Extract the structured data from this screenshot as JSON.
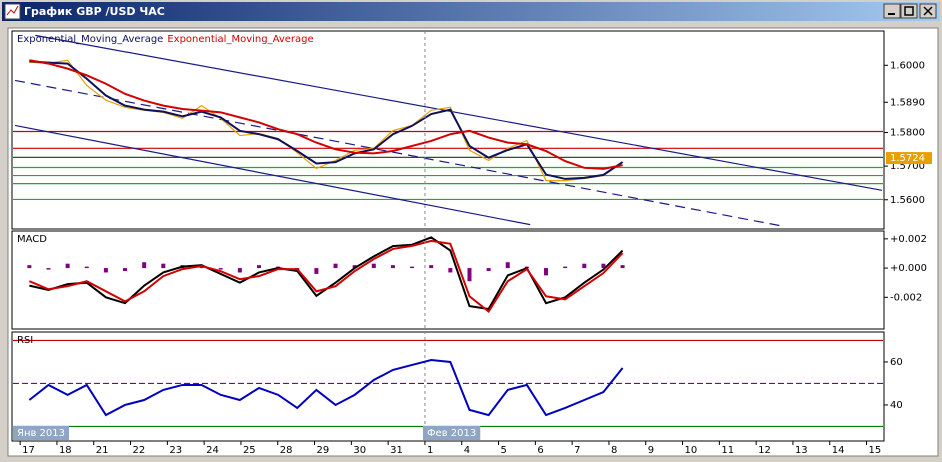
{
  "window": {
    "title": "График GBP /USD ЧАС"
  },
  "chart_data": [
    {
      "type": "line",
      "x": [
        0.25,
        0.77,
        1.29,
        1.81,
        2.33,
        2.85,
        3.37,
        3.89,
        4.41,
        4.93,
        5.45,
        5.97,
        6.49,
        7.01,
        7.53,
        8.05,
        8.57,
        9.09,
        9.61,
        10.13,
        10.65,
        11.17,
        11.69,
        12.21,
        12.73,
        13.25,
        13.77,
        14.29,
        14.81,
        15.33,
        15.85,
        16.37
      ],
      "xlim": [
        -0.14,
        23.42
      ],
      "ylim": [
        1.5516,
        1.6096
      ],
      "yticks": [
        {
          "value": 1.6,
          "label": "1.6000"
        },
        {
          "value": 1.589,
          "label": "1.5890"
        },
        {
          "value": 1.58,
          "label": "1.5800"
        },
        {
          "value": 1.57,
          "label": "1.5700"
        },
        {
          "value": 1.56,
          "label": "1.5600"
        }
      ],
      "series": [
        {
          "color": "#e8a000",
          "values": [
            1.6009,
            1.6006,
            1.6015,
            1.594,
            1.5896,
            1.5875,
            1.5866,
            1.586,
            1.5842,
            1.588,
            1.5842,
            1.5791,
            1.5797,
            1.5782,
            1.574,
            1.5693,
            1.5717,
            1.5747,
            1.5753,
            1.5806,
            1.5821,
            1.5866,
            1.5875,
            1.5747,
            1.5717,
            1.5753,
            1.5776,
            1.5657,
            1.5657,
            1.5663,
            1.5672,
            1.5711
          ]
        },
        {
          "name": "Exponential_Moving_Average",
          "color": "#10105a",
          "values": [
            1.6012,
            1.6008,
            1.6005,
            1.596,
            1.591,
            1.588,
            1.5868,
            1.5862,
            1.5848,
            1.5862,
            1.5845,
            1.5805,
            1.5795,
            1.578,
            1.5745,
            1.5708,
            1.5712,
            1.5738,
            1.575,
            1.5795,
            1.582,
            1.5855,
            1.5868,
            1.576,
            1.5725,
            1.5748,
            1.5765,
            1.5675,
            1.5662,
            1.5665,
            1.5674,
            1.5712
          ]
        },
        {
          "name": "Exponential_Moving_Average",
          "color": "#d40000",
          "values": [
            1.6015,
            1.6005,
            1.599,
            1.597,
            1.5945,
            1.5915,
            1.5895,
            1.588,
            1.587,
            1.5865,
            1.586,
            1.5845,
            1.583,
            1.581,
            1.5795,
            1.577,
            1.575,
            1.574,
            1.5738,
            1.5745,
            1.576,
            1.5775,
            1.5795,
            1.5805,
            1.5785,
            1.577,
            1.5765,
            1.5745,
            1.5715,
            1.5695,
            1.5692,
            1.5703
          ]
        }
      ],
      "hlines": [
        {
          "value": 1.5803,
          "color": "#cc0000"
        },
        {
          "value": 1.5753,
          "color": "#cc0000"
        },
        {
          "value": 1.5726,
          "color": "#2f4f2f"
        },
        {
          "value": 1.5696,
          "color": "#22aa22"
        },
        {
          "value": 1.5672,
          "color": "#22aa22"
        },
        {
          "value": 1.5648,
          "color": "#22aa22"
        },
        {
          "value": 1.5601,
          "color": "#22aa22"
        }
      ],
      "trendlines": [
        {
          "x": [
            0.41,
            23.42
          ],
          "y": [
            1.6089,
            1.5628
          ],
          "color": "#1a1a8c",
          "dash": false
        },
        {
          "x": [
            -0.14,
            20.65
          ],
          "y": [
            1.5955,
            1.5523
          ],
          "color": "#1a1a8c",
          "dash": true
        },
        {
          "x": [
            -0.14,
            13.86
          ],
          "y": [
            1.5821,
            1.5526
          ],
          "color": "#1a1a8c",
          "dash": false
        }
      ],
      "last_price": 1.5724
    },
    {
      "type": "line",
      "title": "MACD",
      "x": [
        0.25,
        0.77,
        1.29,
        1.81,
        2.33,
        2.85,
        3.37,
        3.89,
        4.41,
        4.93,
        5.45,
        5.97,
        6.49,
        7.01,
        7.53,
        8.05,
        8.57,
        9.09,
        9.61,
        10.13,
        10.65,
        11.17,
        11.69,
        12.21,
        12.73,
        13.25,
        13.77,
        14.29,
        14.81,
        15.33,
        15.85,
        16.37
      ],
      "xlim": [
        -0.14,
        23.42
      ],
      "ylim": [
        -0.0041,
        0.0024
      ],
      "yticks": [
        {
          "value": 0.002,
          "label": "+0.002"
        },
        {
          "value": 0,
          "label": "+0.000"
        },
        {
          "value": -0.002,
          "label": "-0.002"
        }
      ],
      "series": [
        {
          "type": "bar",
          "color": "#800080",
          "values": [
            0.0002,
            -0.0001,
            0.0003,
            0.0001,
            -0.0003,
            -0.0002,
            0.0004,
            0.0003,
            0.0002,
            0.0001,
            -0.0001,
            -0.0003,
            0.0002,
            0.0001,
            -0.0002,
            -0.0004,
            0.0003,
            0.0002,
            0.0003,
            0.0002,
            0.0001,
            0.0002,
            -0.0003,
            -0.0009,
            -0.0002,
            0.0004,
            0.0001,
            -0.0005,
            0.0001,
            0.0003,
            0.0003,
            0.0002
          ]
        },
        {
          "color": "#000000",
          "values": [
            -0.0012,
            -0.0015,
            -0.0011,
            -0.001,
            -0.002,
            -0.0024,
            -0.0012,
            -0.0003,
            0.0001,
            0.0002,
            -0.0004,
            -0.001,
            -0.0003,
            0,
            -0.0002,
            -0.0019,
            -0.001,
            0,
            0.0008,
            0.0015,
            0.0016,
            0.0021,
            0.0012,
            -0.0026,
            -0.0028,
            -0.0005,
            0,
            -0.0024,
            -0.002,
            -0.001,
            -0.0001,
            0.0012
          ]
        },
        {
          "color": "#d40000",
          "values": [
            -0.0009,
            -0.00145,
            -0.00124,
            -0.0009,
            -0.00159,
            -0.00228,
            -0.00159,
            -0.00055,
            -7e-05,
            0.00014,
            -0.00021,
            -0.00076,
            -0.00055,
            -7e-05,
            -7e-05,
            -0.00159,
            -0.00124,
            -0.00021,
            0.00062,
            0.00131,
            0.00152,
            0.00186,
            0.00166,
            -0.00193,
            -0.00297,
            -0.0009,
            -7e-05,
            -0.00193,
            -0.00214,
            -0.00124,
            -0.00034,
            0.00103
          ]
        }
      ]
    },
    {
      "type": "line",
      "title": "RSI",
      "x": [
        0.25,
        0.77,
        1.29,
        1.81,
        2.33,
        2.85,
        3.37,
        3.89,
        4.41,
        4.93,
        5.45,
        5.97,
        6.49,
        7.01,
        7.53,
        8.05,
        8.57,
        9.09,
        9.61,
        10.13,
        10.65,
        11.17,
        11.69,
        12.21,
        12.73,
        13.25,
        13.77,
        14.29,
        14.81,
        15.33,
        15.85,
        16.37
      ],
      "xlim": [
        -0.14,
        23.42
      ],
      "ylim": [
        23.7,
        73
      ],
      "yticks": [
        60,
        40
      ],
      "series": [
        {
          "color": "#0000c0",
          "values": [
            42.3,
            49.3,
            44.7,
            49.3,
            35.3,
            40,
            42.3,
            47,
            49.3,
            49.3,
            44.7,
            42.3,
            47.9,
            44.7,
            38.6,
            47,
            40,
            44.7,
            51.6,
            56.3,
            58.6,
            60.9,
            60,
            37.7,
            35.3,
            47,
            49.3,
            35.3,
            38.6,
            42.3,
            46,
            57.2
          ]
        }
      ],
      "hlines": [
        {
          "value": 70,
          "color": "#c00000",
          "dash": false
        },
        {
          "value": 50,
          "color": "#800080",
          "dash": true
        },
        {
          "value": 30,
          "color": "#008000",
          "dash": false
        }
      ],
      "xticks": [
        {
          "value": 0,
          "label": "17"
        },
        {
          "value": 1,
          "label": "18"
        },
        {
          "value": 2,
          "label": "21"
        },
        {
          "value": 3,
          "label": "22"
        },
        {
          "value": 4,
          "label": "23"
        },
        {
          "value": 5,
          "label": "24"
        },
        {
          "value": 6,
          "label": "25"
        },
        {
          "value": 7,
          "label": "28"
        },
        {
          "value": 8,
          "label": "29"
        },
        {
          "value": 9,
          "label": "30"
        },
        {
          "value": 10,
          "label": "31"
        },
        {
          "value": 11,
          "label": "1"
        },
        {
          "value": 12,
          "label": "4"
        },
        {
          "value": 13,
          "label": "5"
        },
        {
          "value": 14,
          "label": "6"
        },
        {
          "value": 15,
          "label": "7"
        },
        {
          "value": 16,
          "label": "8"
        },
        {
          "value": 17,
          "label": "9"
        },
        {
          "value": 18,
          "label": "10"
        },
        {
          "value": 19,
          "label": "11"
        },
        {
          "value": 20,
          "label": "12"
        },
        {
          "value": 21,
          "label": "13"
        },
        {
          "value": 22,
          "label": "14"
        },
        {
          "value": 23,
          "label": "15"
        }
      ],
      "x_annotations": [
        {
          "value": -0.14,
          "label": "Янв 2013"
        },
        {
          "value": 11,
          "label": "Фев 2013"
        }
      ]
    }
  ]
}
